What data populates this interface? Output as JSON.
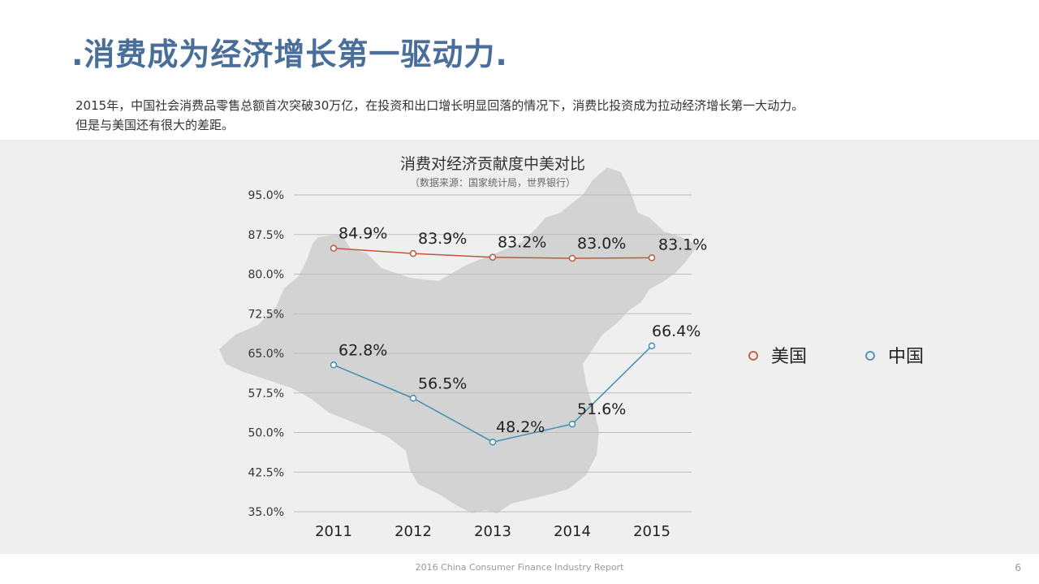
{
  "slide": {
    "title": ".消费成为经济增长第一驱动力.",
    "intro_line1": "2015年，中国社会消费品零售总额首次突破30万亿，在投资和出口增长明显回落的情况下，消费比投资成为拉动经济增长第一大动力。",
    "intro_line2": "但是与美国还有很大的差距。",
    "footer": "2016 China Consumer Finance Industry Report",
    "page_number": "6"
  },
  "chart_data": {
    "type": "line",
    "title": "消费对经济贡献度中美对比",
    "subtitle": "（数据来源：国家统计局，世界银行）",
    "categories": [
      "2011",
      "2012",
      "2013",
      "2014",
      "2015"
    ],
    "ylim": [
      35.0,
      95.0
    ],
    "yticks": [
      "95.0%",
      "87.5%",
      "80.0%",
      "72.5%",
      "65.0%",
      "57.5%",
      "50.0%",
      "42.5%",
      "35.0%"
    ],
    "grid": true,
    "legend_position": "right",
    "background_image": "china-map-silhouette",
    "series": [
      {
        "name": "美国",
        "color": "#c0573a",
        "values": [
          84.9,
          83.9,
          83.2,
          83.0,
          83.1
        ],
        "labels": [
          "84.9%",
          "83.9%",
          "83.2%",
          "83.0%",
          "83.1%"
        ]
      },
      {
        "name": "中国",
        "color": "#3f8fb0",
        "values": [
          62.8,
          56.5,
          48.2,
          51.6,
          66.4
        ],
        "labels": [
          "62.8%",
          "56.5%",
          "48.2%",
          "51.6%",
          "66.4%"
        ]
      }
    ]
  }
}
